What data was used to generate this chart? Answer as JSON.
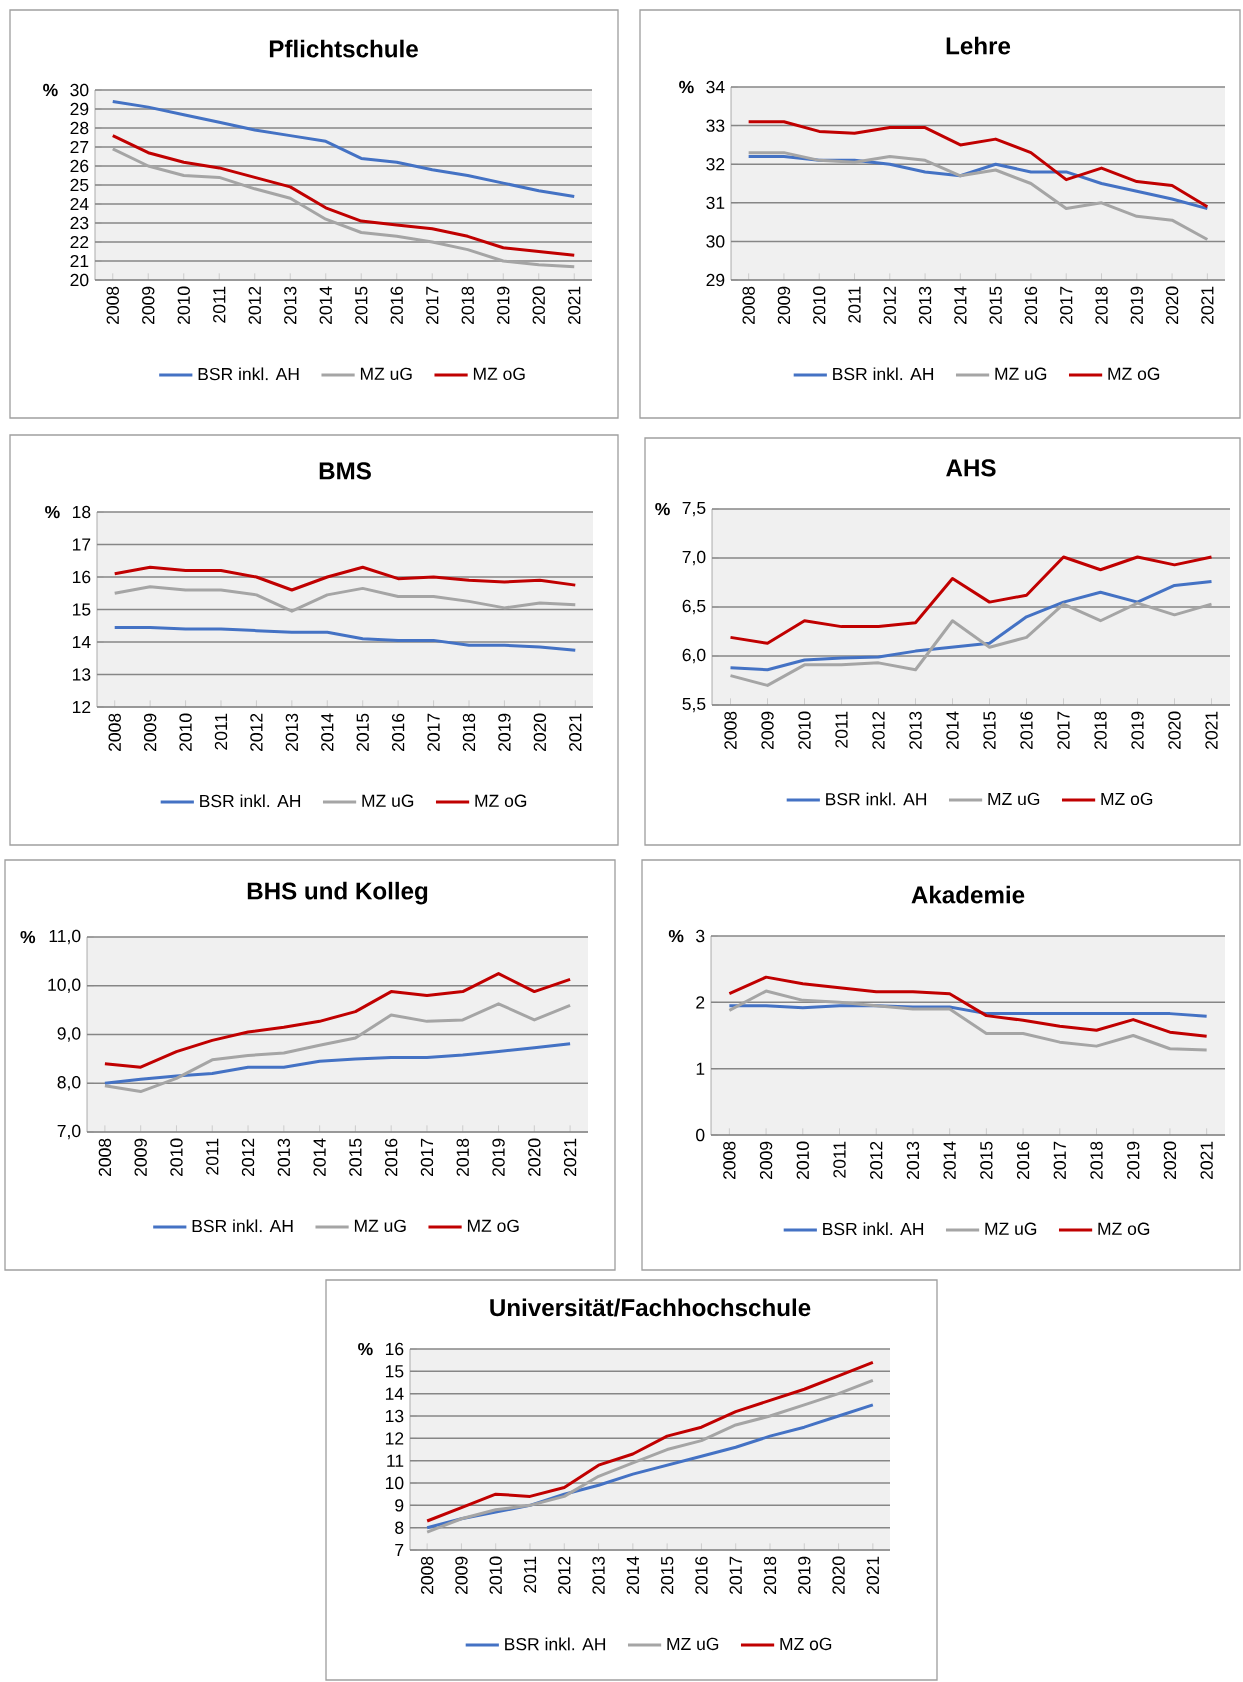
{
  "chart_data": [
    {
      "type": "line",
      "title": "Pflichtschule",
      "ylabel": "%",
      "categories": [
        "2008",
        "2009",
        "2010",
        "2011",
        "2012",
        "2013",
        "2014",
        "2015",
        "2016",
        "2017",
        "2018",
        "2019",
        "2020",
        "2021"
      ],
      "ylim": [
        20,
        30
      ],
      "yticks": [
        20,
        21,
        22,
        23,
        24,
        25,
        26,
        27,
        28,
        29,
        30
      ],
      "grid": "y",
      "legend": "bottom",
      "series": [
        {
          "name": "BSR inkl. AH",
          "color": "#4472c4",
          "values": [
            29.4,
            29.1,
            28.7,
            28.3,
            27.9,
            27.6,
            27.3,
            26.4,
            26.2,
            25.8,
            25.5,
            25.1,
            24.7,
            24.4
          ]
        },
        {
          "name": "MZ uG",
          "color": "#a5a5a5",
          "values": [
            26.9,
            26.0,
            25.5,
            25.4,
            24.8,
            24.3,
            23.2,
            22.5,
            22.3,
            22.0,
            21.6,
            21.0,
            20.8,
            20.7
          ]
        },
        {
          "name": "MZ oG",
          "color": "#c00000",
          "values": [
            27.6,
            26.7,
            26.2,
            25.9,
            25.4,
            24.9,
            23.8,
            23.1,
            22.9,
            22.7,
            22.3,
            21.7,
            21.5,
            21.3
          ]
        }
      ]
    },
    {
      "type": "line",
      "title": "Lehre",
      "ylabel": "%",
      "categories": [
        "2008",
        "2009",
        "2010",
        "2011",
        "2012",
        "2013",
        "2014",
        "2015",
        "2016",
        "2017",
        "2018",
        "2019",
        "2020",
        "2021"
      ],
      "ylim": [
        29,
        34
      ],
      "yticks": [
        29,
        30,
        31,
        32,
        33,
        34
      ],
      "grid": "y",
      "legend": "bottom",
      "series": [
        {
          "name": "BSR inkl. AH",
          "color": "#4472c4",
          "values": [
            32.2,
            32.2,
            32.1,
            32.1,
            32.0,
            31.8,
            31.7,
            32.0,
            31.8,
            31.8,
            31.5,
            31.3,
            31.1,
            30.85
          ]
        },
        {
          "name": "MZ uG",
          "color": "#a5a5a5",
          "values": [
            32.3,
            32.3,
            32.1,
            32.05,
            32.2,
            32.1,
            31.7,
            31.85,
            31.5,
            30.85,
            31.0,
            30.65,
            30.55,
            30.05
          ]
        },
        {
          "name": "MZ oG",
          "color": "#c00000",
          "values": [
            33.1,
            33.1,
            32.85,
            32.8,
            32.95,
            32.95,
            32.5,
            32.65,
            32.3,
            31.6,
            31.9,
            31.55,
            31.45,
            30.9
          ]
        }
      ]
    },
    {
      "type": "line",
      "title": "BMS",
      "ylabel": "%",
      "categories": [
        "2008",
        "2009",
        "2010",
        "2011",
        "2012",
        "2013",
        "2014",
        "2015",
        "2016",
        "2017",
        "2018",
        "2019",
        "2020",
        "2021"
      ],
      "ylim": [
        12,
        18
      ],
      "yticks": [
        12,
        13,
        14,
        15,
        16,
        17,
        18
      ],
      "grid": "y",
      "legend": "bottom",
      "series": [
        {
          "name": "BSR inkl. AH",
          "color": "#4472c4",
          "values": [
            14.45,
            14.45,
            14.4,
            14.4,
            14.35,
            14.3,
            14.3,
            14.1,
            14.05,
            14.05,
            13.9,
            13.9,
            13.85,
            13.75
          ]
        },
        {
          "name": "MZ uG",
          "color": "#a5a5a5",
          "values": [
            15.5,
            15.7,
            15.6,
            15.6,
            15.45,
            14.95,
            15.45,
            15.65,
            15.4,
            15.4,
            15.25,
            15.05,
            15.2,
            15.15
          ]
        },
        {
          "name": "MZ oG",
          "color": "#c00000",
          "values": [
            16.1,
            16.3,
            16.2,
            16.2,
            16.0,
            15.6,
            16.0,
            16.3,
            15.95,
            16.0,
            15.9,
            15.85,
            15.9,
            15.75
          ]
        }
      ]
    },
    {
      "type": "line",
      "title": "AHS",
      "ylabel": "%",
      "categories": [
        "2008",
        "2009",
        "2010",
        "2011",
        "2012",
        "2013",
        "2014",
        "2015",
        "2016",
        "2017",
        "2018",
        "2019",
        "2020",
        "2021"
      ],
      "ylim": [
        5.5,
        7.5
      ],
      "yticks": [
        {
          "value": 5.5,
          "label": "5,5"
        },
        {
          "value": 6,
          "label": "6,0"
        },
        {
          "value": 6.5,
          "label": "6,5"
        },
        {
          "value": 7,
          "label": "7,0"
        },
        {
          "value": 7.5,
          "label": "7,5"
        }
      ],
      "grid": "y",
      "legend": "bottom",
      "series": [
        {
          "name": "BSR inkl. AH",
          "color": "#4472c4",
          "values": [
            5.88,
            5.86,
            5.96,
            5.98,
            5.99,
            6.05,
            6.09,
            6.13,
            6.4,
            6.55,
            6.65,
            6.55,
            6.72,
            6.76
          ]
        },
        {
          "name": "MZ uG",
          "color": "#a5a5a5",
          "values": [
            5.8,
            5.7,
            5.91,
            5.91,
            5.93,
            5.86,
            6.36,
            6.09,
            6.19,
            6.53,
            6.36,
            6.54,
            6.42,
            6.53
          ]
        },
        {
          "name": "MZ oG",
          "color": "#c00000",
          "values": [
            6.19,
            6.13,
            6.36,
            6.3,
            6.3,
            6.34,
            6.79,
            6.55,
            6.62,
            7.01,
            6.88,
            7.01,
            6.93,
            7.01
          ]
        }
      ]
    },
    {
      "type": "line",
      "title": "BHS und Kolleg",
      "ylabel": "%",
      "categories": [
        "2008",
        "2009",
        "2010",
        "2011",
        "2012",
        "2013",
        "2014",
        "2015",
        "2016",
        "2017",
        "2018",
        "2019",
        "2020",
        "2021"
      ],
      "ylim": [
        7,
        11
      ],
      "yticks": [
        {
          "value": 7,
          "label": "7,0"
        },
        {
          "value": 8,
          "label": "8,0"
        },
        {
          "value": 9,
          "label": "9,0"
        },
        {
          "value": 10,
          "label": "10,0"
        },
        {
          "value": 11,
          "label": "11,0"
        }
      ],
      "grid": "y",
      "legend": "bottom",
      "series": [
        {
          "name": "BSR inkl. AH",
          "color": "#4472c4",
          "values": [
            8.0,
            8.08,
            8.15,
            8.2,
            8.33,
            8.33,
            8.45,
            8.5,
            8.53,
            8.53,
            8.58,
            8.65,
            8.73,
            8.81
          ]
        },
        {
          "name": "MZ uG",
          "color": "#a5a5a5",
          "values": [
            7.95,
            7.83,
            8.1,
            8.48,
            8.57,
            8.62,
            8.78,
            8.93,
            9.4,
            9.27,
            9.3,
            9.63,
            9.3,
            9.6
          ]
        },
        {
          "name": "MZ oG",
          "color": "#c00000",
          "values": [
            8.4,
            8.33,
            8.65,
            8.88,
            9.05,
            9.15,
            9.27,
            9.47,
            9.88,
            9.8,
            9.88,
            10.25,
            9.88,
            10.13
          ]
        }
      ]
    },
    {
      "type": "line",
      "title": "Akademie",
      "ylabel": "%",
      "categories": [
        "2008",
        "2009",
        "2010",
        "2011",
        "2012",
        "2013",
        "2014",
        "2015",
        "2016",
        "2017",
        "2018",
        "2019",
        "2020",
        "2021"
      ],
      "ylim": [
        0,
        3
      ],
      "yticks": [
        0,
        1,
        2,
        3
      ],
      "grid": "y",
      "legend": "bottom",
      "series": [
        {
          "name": "BSR inkl. AH",
          "color": "#4472c4",
          "values": [
            1.95,
            1.95,
            1.92,
            1.95,
            1.95,
            1.93,
            1.93,
            1.83,
            1.83,
            1.83,
            1.83,
            1.83,
            1.83,
            1.79
          ]
        },
        {
          "name": "MZ uG",
          "color": "#a5a5a5",
          "values": [
            1.88,
            2.17,
            2.03,
            2.0,
            1.95,
            1.9,
            1.9,
            1.53,
            1.53,
            1.4,
            1.34,
            1.5,
            1.3,
            1.28
          ]
        },
        {
          "name": "MZ oG",
          "color": "#c00000",
          "values": [
            2.13,
            2.38,
            2.28,
            2.22,
            2.16,
            2.16,
            2.13,
            1.8,
            1.73,
            1.64,
            1.58,
            1.74,
            1.55,
            1.49
          ]
        }
      ]
    },
    {
      "type": "line",
      "title": "Universität/Fachhochschule",
      "ylabel": "%",
      "categories": [
        "2008",
        "2009",
        "2010",
        "2011",
        "2012",
        "2013",
        "2014",
        "2015",
        "2016",
        "2017",
        "2018",
        "2019",
        "2020",
        "2021"
      ],
      "ylim": [
        7,
        16
      ],
      "yticks": [
        7,
        8,
        9,
        10,
        11,
        12,
        13,
        14,
        15,
        16
      ],
      "grid": "y",
      "legend": "bottom",
      "series": [
        {
          "name": "BSR inkl. AH",
          "color": "#4472c4",
          "values": [
            8.0,
            8.4,
            8.7,
            9.0,
            9.5,
            9.9,
            10.4,
            10.8,
            11.2,
            11.6,
            12.1,
            12.5,
            13.0,
            13.5
          ]
        },
        {
          "name": "MZ uG",
          "color": "#a5a5a5",
          "values": [
            7.8,
            8.4,
            8.8,
            9.0,
            9.4,
            10.3,
            10.9,
            11.5,
            11.9,
            12.6,
            13.0,
            13.5,
            14.0,
            14.6
          ]
        },
        {
          "name": "MZ oG",
          "color": "#c00000",
          "values": [
            8.3,
            8.9,
            9.5,
            9.4,
            9.8,
            10.8,
            11.3,
            12.1,
            12.5,
            13.2,
            13.7,
            14.2,
            14.8,
            15.4
          ]
        }
      ]
    }
  ]
}
